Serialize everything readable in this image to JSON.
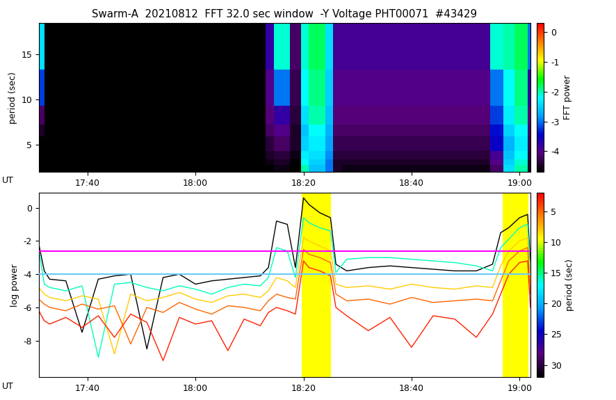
{
  "chart_data": [
    {
      "type": "heatmap",
      "title": "Swarm-A  20210812  FFT 32.0 sec window  -Y Voltage PHT00071  #43429",
      "y_label": "period (sec)",
      "x_label": "UT",
      "xlim": [
        1051,
        1142
      ],
      "xticks": [
        {
          "value": 1060,
          "label": "17:40"
        },
        {
          "value": 1080,
          "label": "18:00"
        },
        {
          "value": 1100,
          "label": "18:20"
        },
        {
          "value": 1120,
          "label": "18:40"
        },
        {
          "value": 1140,
          "label": "19:00"
        }
      ],
      "ylim": [
        2,
        18.4
      ],
      "yticks": [
        5,
        10,
        15
      ],
      "time_edges": [
        1051,
        1052,
        1093,
        1094.5,
        1097.5,
        1099.5,
        1101,
        1104,
        1105.5,
        1107,
        1134.5,
        1137,
        1139,
        1141.5,
        1142
      ],
      "period_edges": [
        2,
        2.8,
        3.4,
        4.3,
        5.9,
        7.2,
        9.3,
        13.3,
        18.4
      ],
      "cells": [
        [
          -5,
          -5,
          -4.8,
          -4.6,
          -4.8,
          -2.0,
          -2.6,
          -3.0,
          -4.5,
          -4.6,
          -4.2,
          -2.4,
          -2.0,
          -4.5
        ],
        [
          -5,
          -5,
          -4.6,
          -4.5,
          -4.7,
          -2.2,
          -2.5,
          -3.0,
          -4.5,
          -4.5,
          -4.0,
          -2.5,
          -2.1,
          -4.5
        ],
        [
          -5,
          -5,
          -4.5,
          -4.4,
          -4.6,
          -2.3,
          -2.4,
          -2.9,
          -4.4,
          -4.4,
          -3.9,
          -2.6,
          -2.2,
          -4.4
        ],
        [
          -4.8,
          -5,
          -4.4,
          -4.2,
          -4.5,
          -2.5,
          -2.3,
          -2.8,
          -4.3,
          -4.3,
          -3.5,
          -2.7,
          -2.3,
          -4.3
        ],
        [
          -4.5,
          -5,
          -4.2,
          -4.0,
          -4.5,
          -2.6,
          -2.2,
          -2.7,
          -4.2,
          -4.2,
          -3.4,
          -2.5,
          -2.2,
          -4.2
        ],
        [
          -4.2,
          -5,
          -4.1,
          -3.8,
          -4.4,
          -2.4,
          -2.0,
          -2.6,
          -4.1,
          -4.1,
          -3.2,
          -2.3,
          -2.0,
          -4.1
        ],
        [
          -3.2,
          -4.9,
          -4.0,
          -3.0,
          -4.3,
          -2.2,
          -1.9,
          -2.5,
          -4.0,
          -4.0,
          -3.0,
          -2.2,
          -1.9,
          -3.8
        ],
        [
          -2.4,
          -4.9,
          -3.8,
          -2.1,
          -4.2,
          -2.1,
          -1.8,
          -2.4,
          -3.9,
          -3.9,
          -2.1,
          -2.0,
          -1.8,
          -3.0
        ]
      ],
      "colorbar": {
        "label": "FFT power",
        "lim": [
          -4.7,
          0.3
        ],
        "ticks": [
          0,
          -1,
          -2,
          -3,
          -4
        ]
      }
    },
    {
      "type": "line",
      "y_label": "log power",
      "x_label": "UT",
      "xlim": [
        1051,
        1142
      ],
      "xticks": [
        {
          "value": 1060,
          "label": "17:40"
        },
        {
          "value": 1080,
          "label": "18:00"
        },
        {
          "value": 1100,
          "label": "18:20"
        },
        {
          "value": 1120,
          "label": "18:40"
        },
        {
          "value": 1140,
          "label": "19:00"
        }
      ],
      "ylim": [
        -10.2,
        0.9
      ],
      "yticks": [
        -8,
        -6,
        -4,
        -2,
        0
      ],
      "x": [
        1051,
        1052,
        1053,
        1056,
        1059,
        1062,
        1065,
        1068,
        1071,
        1074,
        1077,
        1080,
        1083,
        1086,
        1089,
        1092,
        1093.5,
        1095,
        1097,
        1098.5,
        1100,
        1101,
        1103,
        1105,
        1106,
        1108,
        1112,
        1116,
        1120,
        1124,
        1128,
        1132,
        1135,
        1136.5,
        1138,
        1140,
        1141.5,
        1142
      ],
      "series": [
        {
          "period": 32,
          "values": [
            -2.2,
            -3.8,
            -4.3,
            -4.4,
            -7.5,
            -4.3,
            -4.1,
            -4.0,
            -8.5,
            -4.2,
            -4.0,
            -4.6,
            -4.4,
            -4.3,
            -4.2,
            -4.1,
            -3.6,
            -0.8,
            -1.0,
            -3.6,
            0.6,
            0.2,
            -0.3,
            -0.6,
            -3.4,
            -3.8,
            -3.6,
            -3.5,
            -3.6,
            -3.7,
            -3.8,
            -3.8,
            -3.4,
            -1.5,
            -1.2,
            -0.6,
            -0.4,
            -3.2
          ]
        },
        {
          "period": 16,
          "values": [
            -2.5,
            -4.6,
            -4.8,
            -5.0,
            -4.7,
            -9.0,
            -4.6,
            -4.5,
            -4.8,
            -5.0,
            -4.7,
            -4.9,
            -5.2,
            -4.8,
            -4.6,
            -4.7,
            -4.2,
            -2.4,
            -2.6,
            -4.2,
            -0.6,
            -0.9,
            -1.2,
            -1.4,
            -3.9,
            -3.1,
            -3.0,
            -3.0,
            -3.1,
            -3.2,
            -3.3,
            -3.5,
            -3.8,
            -2.4,
            -1.9,
            -1.2,
            -1.0,
            -3.8
          ]
        },
        {
          "period": 8,
          "values": [
            -4.8,
            -5.2,
            -5.4,
            -5.6,
            -5.3,
            -5.5,
            -8.8,
            -5.2,
            -5.6,
            -5.4,
            -5.1,
            -5.5,
            -5.7,
            -5.3,
            -5.2,
            -5.4,
            -5.0,
            -4.2,
            -4.4,
            -4.8,
            -1.8,
            -2.0,
            -2.3,
            -2.6,
            -4.6,
            -4.8,
            -4.7,
            -4.9,
            -4.6,
            -4.8,
            -4.9,
            -4.7,
            -4.8,
            -3.5,
            -2.6,
            -2.0,
            -1.8,
            -4.5
          ]
        },
        {
          "period": 5,
          "values": [
            -5.5,
            -5.8,
            -6.0,
            -6.2,
            -5.8,
            -6.1,
            -5.9,
            -8.2,
            -6.0,
            -6.3,
            -5.7,
            -6.1,
            -6.4,
            -5.9,
            -6.0,
            -6.2,
            -5.6,
            -5.2,
            -5.4,
            -5.5,
            -2.5,
            -2.8,
            -3.0,
            -3.3,
            -5.2,
            -5.6,
            -5.5,
            -5.8,
            -5.4,
            -5.7,
            -5.6,
            -5.5,
            -5.6,
            -4.4,
            -3.2,
            -2.6,
            -2.4,
            -5.2
          ]
        },
        {
          "period": 3,
          "values": [
            -6.2,
            -6.8,
            -7.0,
            -6.6,
            -7.2,
            -6.5,
            -7.8,
            -6.4,
            -6.9,
            -9.2,
            -6.6,
            -7.0,
            -6.8,
            -8.6,
            -6.7,
            -7.1,
            -6.3,
            -6.0,
            -6.2,
            -6.4,
            -3.2,
            -3.6,
            -3.8,
            -4.1,
            -6.0,
            -6.5,
            -7.4,
            -6.6,
            -8.4,
            -6.5,
            -6.7,
            -7.8,
            -6.4,
            -5.2,
            -4.0,
            -3.3,
            -3.2,
            -6.0
          ]
        }
      ],
      "thresholds": [
        {
          "value": -2.6,
          "color": "#ff00ff"
        },
        {
          "value": -4.0,
          "color": "#66ccff"
        }
      ],
      "highlights": [
        [
          1099.7,
          1105.1
        ],
        [
          1136.9,
          1141.7
        ]
      ],
      "highlight_color": "#ffff00",
      "colorbar": {
        "label": "period (sec)",
        "lim": [
          32,
          2
        ],
        "ticks": [
          5,
          10,
          15,
          20,
          25,
          30
        ]
      }
    }
  ]
}
